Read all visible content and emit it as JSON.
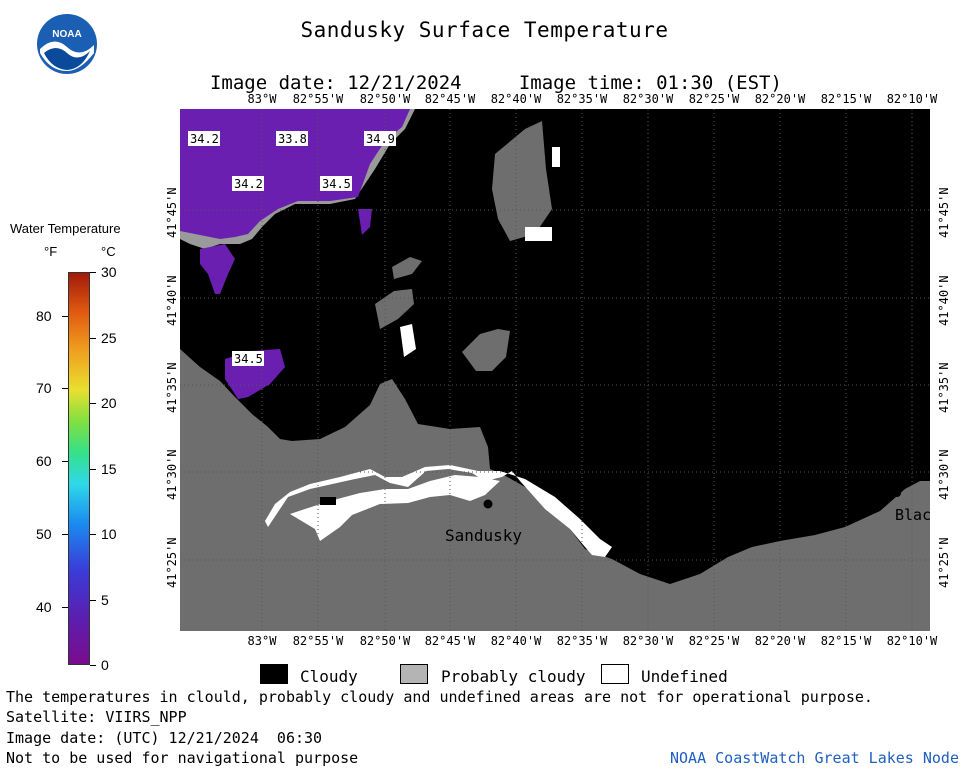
{
  "title": "Sandusky Surface Temperature",
  "image_date_label": "Image date: 12/21/2024",
  "image_time_label": "Image time: 01:30 (EST)",
  "logo_text": "NOAA",
  "map": {
    "lon_ticks": [
      "83°W",
      "82°55'W",
      "82°50'W",
      "82°45'W",
      "82°40'W",
      "82°35'W",
      "82°30'W",
      "82°25'W",
      "82°20'W",
      "82°15'W",
      "82°10'W"
    ],
    "lat_ticks": [
      "41°45'N",
      "41°40'N",
      "41°35'N",
      "41°30'N",
      "41°25'N"
    ],
    "temperature_labels": [
      "34.2",
      "33.8",
      "34.9",
      "34.2",
      "34.5",
      "34.5"
    ],
    "places": [
      "Sandusky",
      "Blac"
    ],
    "colors": {
      "cloudy": "#000000",
      "probably_cloudy": "#6e6e6e",
      "undefined": "#ffffff",
      "water": "#6a1fb0"
    }
  },
  "colorbar": {
    "title": "Water Temperature",
    "unit_f": "°F",
    "unit_c": "°C",
    "f_ticks": [
      "80",
      "70",
      "60",
      "50",
      "40"
    ],
    "c_ticks": [
      "30",
      "25",
      "20",
      "15",
      "10",
      "5",
      "0"
    ]
  },
  "legend": {
    "cloudy": "Cloudy",
    "probably_cloudy": "Probably cloudy",
    "undefined": "Undefined"
  },
  "footer": {
    "line1": "The temperatures in clould, probably cloudy and undefined areas are not for operational purpose.",
    "line2": "Satellite: VIIRS_NPP",
    "line3": "Image date: (UTC) 12/21/2024  06:30",
    "line4": "Not to be used for navigational purpose",
    "credit": "NOAA CoastWatch Great Lakes Node"
  }
}
